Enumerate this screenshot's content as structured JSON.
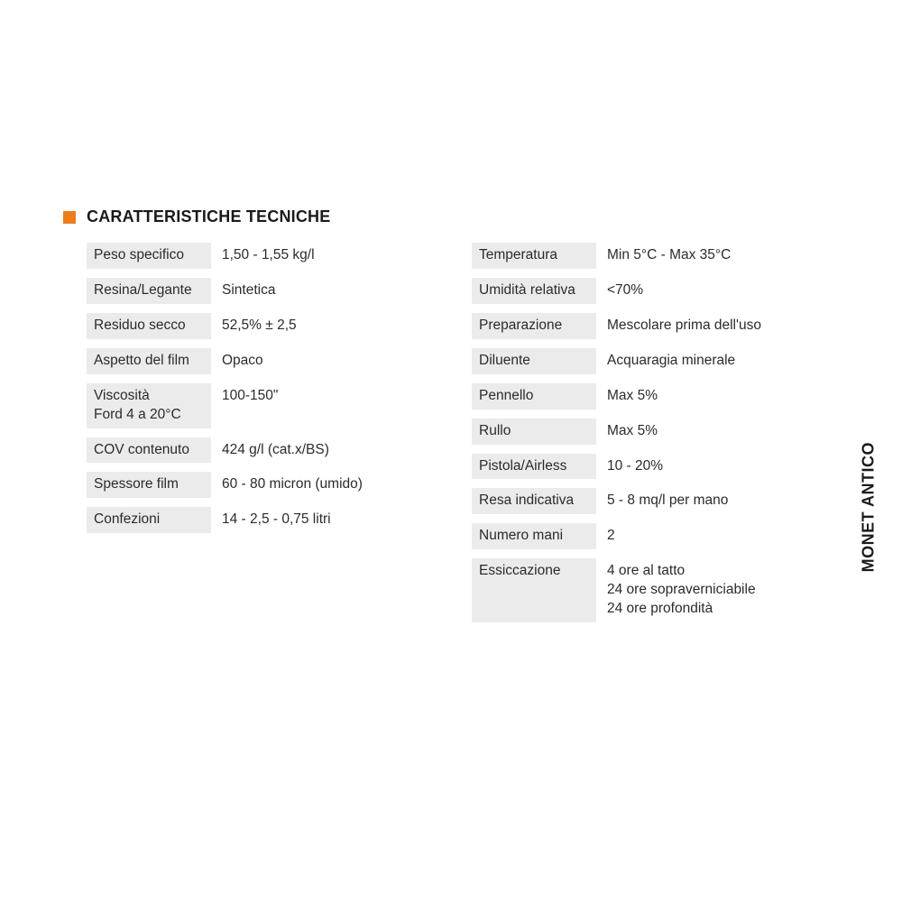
{
  "title": "CARATTERISTICHE TECNICHE",
  "side_label": "MONET ANTICO",
  "accent_color": "#ee7c1a",
  "label_bg": "#ebebeb",
  "left": [
    {
      "label": "Peso specifico",
      "value": "1,50 - 1,55 kg/l"
    },
    {
      "label": "Resina/Legante",
      "value": "Sintetica"
    },
    {
      "label": "Residuo secco",
      "value": "52,5% ± 2,5"
    },
    {
      "label": "Aspetto del film",
      "value": "Opaco"
    },
    {
      "label": "Viscosità\nFord 4 a 20°C",
      "value": "100-150\""
    },
    {
      "label": "COV contenuto",
      "value": "424 g/l (cat.x/BS)"
    },
    {
      "label": "Spessore film",
      "value": "60 - 80 micron (umido)"
    },
    {
      "label": "Confezioni",
      "value": "14 - 2,5 - 0,75  litri"
    }
  ],
  "right": [
    {
      "label": "Temperatura",
      "value": "Min 5°C - Max 35°C"
    },
    {
      "label": "Umidità relativa",
      "value": "<70%"
    },
    {
      "label": "Preparazione",
      "value": "Mescolare prima dell'uso"
    },
    {
      "label": "Diluente",
      "value": "Acquaragia minerale"
    },
    {
      "label": "Pennello",
      "value": "Max 5%"
    },
    {
      "label": "Rullo",
      "value": "Max 5%"
    },
    {
      "label": "Pistola/Airless",
      "value": "10 - 20%"
    },
    {
      "label": "Resa indicativa",
      "value": "5 - 8 mq/l per mano"
    },
    {
      "label": "Numero mani",
      "value": "2"
    },
    {
      "label": "Essiccazione",
      "value": "4 ore al tatto\n24 ore sopraverniciabile\n24 ore profondità"
    }
  ]
}
